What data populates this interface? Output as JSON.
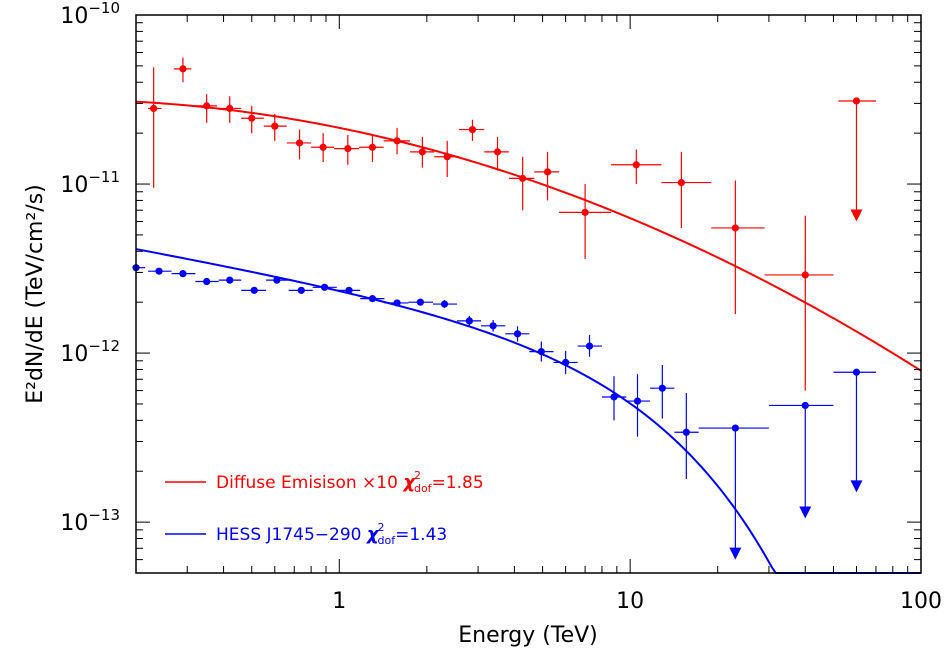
{
  "chart_data": {
    "type": "scatter",
    "xlabel": "Energy (TeV)",
    "ylabel": "E²dN/dE (TeV/cm²/s)",
    "x_scale": "log",
    "y_scale": "log",
    "xlim": [
      0.2,
      100
    ],
    "ylim": [
      5e-14,
      1e-10
    ],
    "x_ticks": [
      {
        "value": 1,
        "label": "1"
      },
      {
        "value": 10,
        "label": "10"
      },
      {
        "value": 100,
        "label": "100"
      }
    ],
    "y_ticks": [
      {
        "value": 1e-10,
        "base": "10",
        "exp": "−10"
      },
      {
        "value": 1e-11,
        "base": "10",
        "exp": "−11"
      },
      {
        "value": 1e-12,
        "base": "10",
        "exp": "−12"
      },
      {
        "value": 1e-13,
        "base": "10",
        "exp": "−13"
      }
    ],
    "legend_placement": "bottom-left",
    "series": [
      {
        "name": "Diffuse Emisison ×10",
        "legend_label": "Diffuse Emisison ×10",
        "chi2_value": "=1.85",
        "color": "#ff0000",
        "points": [
          {
            "x": 0.23,
            "y": 2.8e-11,
            "xerr": [
              0.22,
              0.245
            ],
            "yerr": [
              9.5e-12,
              4.9e-11
            ]
          },
          {
            "x": 0.29,
            "y": 4.8e-11,
            "xerr": [
              0.27,
              0.31
            ],
            "yerr": [
              4e-11,
              5.6e-11
            ]
          },
          {
            "x": 0.35,
            "y": 2.9e-11,
            "xerr": [
              0.32,
              0.38
            ],
            "yerr": [
              2.3e-11,
              3.4e-11
            ]
          },
          {
            "x": 0.42,
            "y": 2.8e-11,
            "xerr": [
              0.38,
              0.46
            ],
            "yerr": [
              2.3e-11,
              3.3e-11
            ]
          },
          {
            "x": 0.5,
            "y": 2.45e-11,
            "xerr": [
              0.46,
              0.55
            ],
            "yerr": [
              2e-11,
              2.9e-11
            ]
          },
          {
            "x": 0.6,
            "y": 2.2e-11,
            "xerr": [
              0.55,
              0.66
            ],
            "yerr": [
              1.8e-11,
              2.6e-11
            ]
          },
          {
            "x": 0.73,
            "y": 1.75e-11,
            "xerr": [
              0.66,
              0.8
            ],
            "yerr": [
              1.4e-11,
              2.1e-11
            ]
          },
          {
            "x": 0.88,
            "y": 1.65e-11,
            "xerr": [
              0.8,
              0.96
            ],
            "yerr": [
              1.35e-11,
              2e-11
            ]
          },
          {
            "x": 1.07,
            "y": 1.62e-11,
            "xerr": [
              0.96,
              1.17
            ],
            "yerr": [
              1.3e-11,
              1.95e-11
            ]
          },
          {
            "x": 1.3,
            "y": 1.65e-11,
            "xerr": [
              1.17,
              1.42
            ],
            "yerr": [
              1.35e-11,
              1.95e-11
            ]
          },
          {
            "x": 1.58,
            "y": 1.8e-11,
            "xerr": [
              1.42,
              1.75
            ],
            "yerr": [
              1.5e-11,
              2.15e-11
            ]
          },
          {
            "x": 1.93,
            "y": 1.55e-11,
            "xerr": [
              1.75,
              2.12
            ],
            "yerr": [
              1.25e-11,
              1.9e-11
            ]
          },
          {
            "x": 2.35,
            "y": 1.45e-11,
            "xerr": [
              2.12,
              2.58
            ],
            "yerr": [
              1.1e-11,
              1.8e-11
            ]
          },
          {
            "x": 2.87,
            "y": 2.1e-11,
            "xerr": [
              2.58,
              3.15
            ],
            "yerr": [
              1.8e-11,
              2.4e-11
            ]
          },
          {
            "x": 3.5,
            "y": 1.55e-11,
            "xerr": [
              3.15,
              3.83
            ],
            "yerr": [
              1.2e-11,
              1.9e-11
            ]
          },
          {
            "x": 4.27,
            "y": 1.08e-11,
            "xerr": [
              3.83,
              4.68
            ],
            "yerr": [
              7e-12,
              1.45e-11
            ]
          },
          {
            "x": 5.2,
            "y": 1.18e-11,
            "xerr": [
              4.68,
              5.7
            ],
            "yerr": [
              8e-12,
              1.55e-11
            ]
          },
          {
            "x": 7.0,
            "y": 6.8e-12,
            "xerr": [
              5.7,
              8.6
            ],
            "yerr": [
              3.6e-12,
              1e-11
            ]
          },
          {
            "x": 10.5,
            "y": 1.3e-11,
            "xerr": [
              8.6,
              12.8
            ],
            "yerr": [
              1e-11,
              1.6e-11
            ]
          },
          {
            "x": 15.0,
            "y": 1.02e-11,
            "xerr": [
              12.8,
              19.0
            ],
            "yerr": [
              5.5e-12,
              1.55e-11
            ]
          },
          {
            "x": 23.0,
            "y": 5.5e-12,
            "xerr": [
              19.0,
              29.0
            ],
            "yerr": [
              1.7e-12,
              1.05e-11
            ]
          },
          {
            "x": 40.0,
            "y": 2.9e-12,
            "xerr": [
              29.0,
              50.0
            ],
            "yerr": [
              6e-13,
              6.5e-12
            ]
          }
        ],
        "upper_limits": [
          {
            "x": 60.0,
            "y": 3.1e-11,
            "xerr": [
              52.0,
              70.0
            ],
            "arrow_to": 6e-12
          }
        ],
        "fit_curve": {
          "norm": 2.15e-11,
          "alpha": 0.35,
          "beta": 0.08,
          "x0": 1,
          "xmin": 0.2,
          "xmax": 100
        }
      },
      {
        "name": "HESS J1745−290",
        "legend_label": "HESS J1745−290",
        "chi2_value": "=1.43",
        "color": "#0000ff",
        "points": [
          {
            "x": 0.2,
            "y": 3.2e-12,
            "xerr": [
              0.2,
              0.215
            ],
            "yerr": [
              3.1e-12,
              3.3e-12
            ]
          },
          {
            "x": 0.24,
            "y": 3.05e-12,
            "xerr": [
              0.22,
              0.265
            ],
            "yerr": [
              2.97e-12,
              3.13e-12
            ]
          },
          {
            "x": 0.29,
            "y": 2.95e-12,
            "xerr": [
              0.265,
              0.32
            ],
            "yerr": [
              2.88e-12,
              3.02e-12
            ]
          },
          {
            "x": 0.35,
            "y": 2.65e-12,
            "xerr": [
              0.32,
              0.385
            ],
            "yerr": [
              2.58e-12,
              2.72e-12
            ]
          },
          {
            "x": 0.42,
            "y": 2.7e-12,
            "xerr": [
              0.385,
              0.46
            ],
            "yerr": [
              2.63e-12,
              2.77e-12
            ]
          },
          {
            "x": 0.51,
            "y": 2.35e-12,
            "xerr": [
              0.46,
              0.56
            ],
            "yerr": [
              2.28e-12,
              2.42e-12
            ]
          },
          {
            "x": 0.61,
            "y": 2.7e-12,
            "xerr": [
              0.56,
              0.67
            ],
            "yerr": [
              2.63e-12,
              2.77e-12
            ]
          },
          {
            "x": 0.74,
            "y": 2.35e-12,
            "xerr": [
              0.67,
              0.81
            ],
            "yerr": [
              2.28e-12,
              2.42e-12
            ]
          },
          {
            "x": 0.89,
            "y": 2.45e-12,
            "xerr": [
              0.81,
              0.98
            ],
            "yerr": [
              2.38e-12,
              2.53e-12
            ]
          },
          {
            "x": 1.08,
            "y": 2.35e-12,
            "xerr": [
              0.98,
              1.18
            ],
            "yerr": [
              2.27e-12,
              2.43e-12
            ]
          },
          {
            "x": 1.3,
            "y": 2.1e-12,
            "xerr": [
              1.18,
              1.43
            ],
            "yerr": [
              2.02e-12,
              2.18e-12
            ]
          },
          {
            "x": 1.58,
            "y": 1.98e-12,
            "xerr": [
              1.43,
              1.73
            ],
            "yerr": [
              1.9e-12,
              2.07e-12
            ]
          },
          {
            "x": 1.9,
            "y": 2e-12,
            "xerr": [
              1.73,
              2.1
            ],
            "yerr": [
              1.91e-12,
              2.1e-12
            ]
          },
          {
            "x": 2.3,
            "y": 1.95e-12,
            "xerr": [
              2.1,
              2.54
            ],
            "yerr": [
              1.85e-12,
              2.06e-12
            ]
          },
          {
            "x": 2.8,
            "y": 1.55e-12,
            "xerr": [
              2.54,
              3.07
            ],
            "yerr": [
              1.45e-12,
              1.66e-12
            ]
          },
          {
            "x": 3.38,
            "y": 1.45e-12,
            "xerr": [
              3.07,
              3.72
            ],
            "yerr": [
              1.34e-12,
              1.57e-12
            ]
          },
          {
            "x": 4.1,
            "y": 1.3e-12,
            "xerr": [
              3.72,
              4.5
            ],
            "yerr": [
              1.17e-12,
              1.44e-12
            ]
          },
          {
            "x": 4.95,
            "y": 1.02e-12,
            "xerr": [
              4.5,
              5.45
            ],
            "yerr": [
              8.9e-13,
              1.17e-12
            ]
          },
          {
            "x": 6.0,
            "y": 8.8e-13,
            "xerr": [
              5.45,
              6.6
            ],
            "yerr": [
              7.5e-13,
              1.03e-12
            ]
          },
          {
            "x": 7.25,
            "y": 1.1e-12,
            "xerr": [
              6.6,
              8.0
            ],
            "yerr": [
              9.5e-13,
              1.28e-12
            ]
          },
          {
            "x": 8.8,
            "y": 5.5e-13,
            "xerr": [
              8.0,
              9.7
            ],
            "yerr": [
              4e-13,
              7.3e-13
            ]
          },
          {
            "x": 10.6,
            "y": 5.2e-13,
            "xerr": [
              9.7,
              11.7
            ],
            "yerr": [
              3.2e-13,
              7.5e-13
            ]
          },
          {
            "x": 12.9,
            "y": 6.2e-13,
            "xerr": [
              11.7,
              14.2
            ],
            "yerr": [
              4.1e-13,
              8.5e-13
            ]
          },
          {
            "x": 15.6,
            "y": 3.4e-13,
            "xerr": [
              14.2,
              17.2
            ],
            "yerr": [
              1.8e-13,
              5.8e-13
            ]
          }
        ],
        "upper_limits": [
          {
            "x": 23.0,
            "y": 3.6e-13,
            "xerr": [
              17.2,
              30.0
            ],
            "arrow_to": 6e-14
          },
          {
            "x": 40.0,
            "y": 4.9e-13,
            "xerr": [
              30.0,
              50.0
            ],
            "arrow_to": 1.05e-13
          },
          {
            "x": 60.0,
            "y": 7.7e-13,
            "xerr": [
              50.0,
              70.0
            ],
            "arrow_to": 1.5e-13
          }
        ],
        "fit_curve": {
          "norm": 2.55e-12,
          "alpha": 0.31,
          "beta": 0.0,
          "cutoff": 11.0,
          "x0": 1,
          "xmin": 0.2,
          "xmax": 100
        }
      }
    ]
  }
}
